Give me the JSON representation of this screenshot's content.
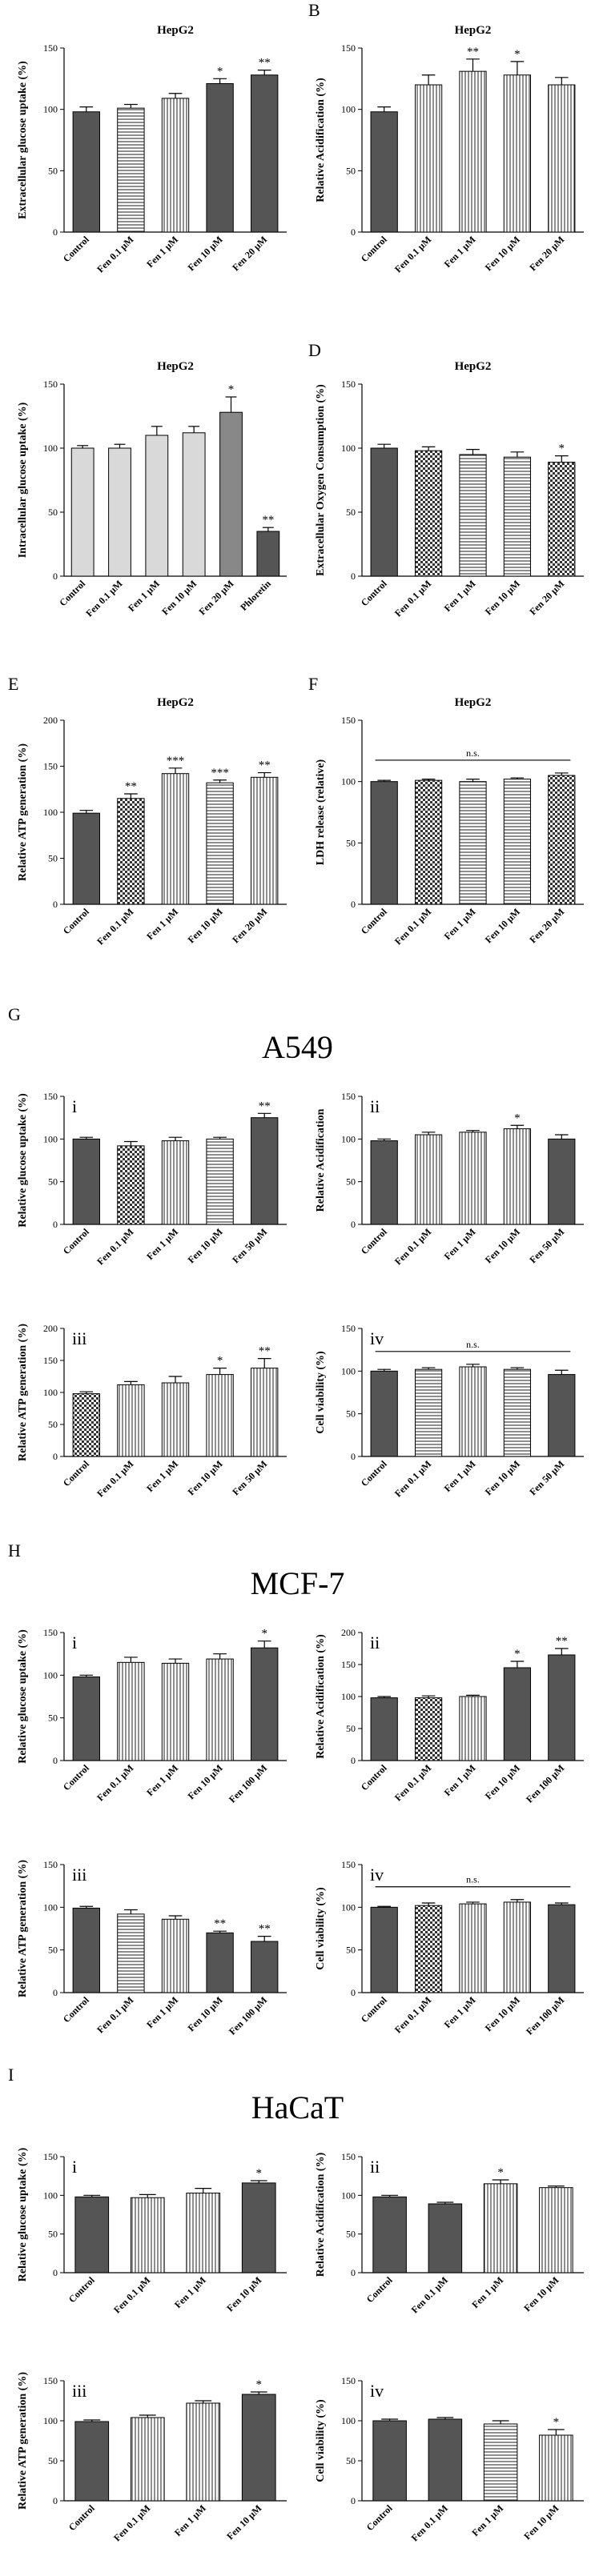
{
  "panel_letters": [
    "B",
    "D",
    "E",
    "F",
    "G",
    "H",
    "I"
  ],
  "sections": {
    "G": "A549",
    "H": "MCF-7",
    "I": "HaCaT"
  },
  "chart_data": [
    {
      "id": "A",
      "type": "bar",
      "title": "HepG2",
      "ylabel": "Extracellular glucose uptake (%)",
      "roman": "",
      "ylim": [
        0,
        150
      ],
      "yticks": [
        0,
        50,
        100,
        150
      ],
      "categories": [
        "Control",
        "Fen 0.1 μM",
        "Fen 1 μM",
        "Fen 10 μM",
        "Fen 20 μM"
      ],
      "values": [
        98,
        101,
        109,
        121,
        128
      ],
      "errors": [
        4,
        3,
        4,
        4,
        4
      ],
      "sig": [
        "",
        "",
        "",
        "*",
        "**"
      ],
      "patterns": [
        "dark",
        "hlines",
        "vlines",
        "dark",
        "dark"
      ]
    },
    {
      "id": "B",
      "type": "bar",
      "title": "HepG2",
      "ylabel": "Relative Acidification (%)",
      "roman": "",
      "ylim": [
        0,
        150
      ],
      "yticks": [
        0,
        50,
        100,
        150
      ],
      "categories": [
        "Control",
        "Fen 0.1 μM",
        "Fen 1 μM",
        "Fen 10 μM",
        "Fen 20 μM"
      ],
      "values": [
        98,
        120,
        131,
        128,
        120
      ],
      "errors": [
        4,
        8,
        10,
        11,
        6
      ],
      "sig": [
        "",
        "",
        "**",
        "*",
        ""
      ],
      "patterns": [
        "dark",
        "vlines",
        "vlines",
        "vlines",
        "vlines"
      ]
    },
    {
      "id": "C",
      "type": "bar",
      "title": "HepG2",
      "ylabel": "Intracellular glucose uptake (%)",
      "roman": "",
      "ylim": [
        0,
        150
      ],
      "yticks": [
        0,
        50,
        100,
        150
      ],
      "categories": [
        "Control",
        "Fen 0.1 μM",
        "Fen 1 μM",
        "Fen 10 μM",
        "Fen 20 μM",
        "Phloretin"
      ],
      "values": [
        100,
        100,
        110,
        112,
        128,
        35
      ],
      "errors": [
        2,
        3,
        7,
        5,
        12,
        3
      ],
      "sig": [
        "",
        "",
        "",
        "",
        "*",
        "**"
      ],
      "patterns": [
        "light",
        "light",
        "light",
        "light",
        "mid",
        "dark"
      ]
    },
    {
      "id": "D",
      "type": "bar",
      "title": "HepG2",
      "ylabel": "Extracellular Oxygen Consumption (%)",
      "roman": "",
      "ylim": [
        0,
        150
      ],
      "yticks": [
        0,
        50,
        100,
        150
      ],
      "categories": [
        "Control",
        "Fen 0.1 μM",
        "Fen 1 μM",
        "Fen 10 μM",
        "Fen 20 μM"
      ],
      "values": [
        100,
        98,
        95,
        93,
        89
      ],
      "errors": [
        3,
        3,
        4,
        4,
        5
      ],
      "sig": [
        "",
        "",
        "",
        "",
        "*"
      ],
      "patterns": [
        "dark",
        "checker",
        "hlines",
        "hlines",
        "checker"
      ]
    },
    {
      "id": "E",
      "type": "bar",
      "title": "HepG2",
      "ylabel": "Relative ATP generation (%)",
      "roman": "",
      "ylim": [
        0,
        200
      ],
      "yticks": [
        0,
        50,
        100,
        150,
        200
      ],
      "categories": [
        "Control",
        "Fen 0.1 μM",
        "Fen 1 μM",
        "Fen 10 μM",
        "Fen 20 μM"
      ],
      "values": [
        99,
        115,
        142,
        132,
        138
      ],
      "errors": [
        3,
        5,
        6,
        3,
        5
      ],
      "sig": [
        "",
        "**",
        "***",
        "***",
        "**"
      ],
      "patterns": [
        "dark",
        "checker",
        "vlines",
        "hlines",
        "vlines"
      ]
    },
    {
      "id": "F",
      "type": "bar",
      "title": "HepG2",
      "ylabel": "LDH release (relative)",
      "roman": "",
      "ylim": [
        0,
        150
      ],
      "yticks": [
        0,
        50,
        100,
        150
      ],
      "categories": [
        "Control",
        "Fen 0.1 μM",
        "Fen 1 μM",
        "Fen 10 μM",
        "Fen 20 μM"
      ],
      "values": [
        100,
        101,
        100,
        102,
        105
      ],
      "errors": [
        1,
        1,
        2,
        1,
        2
      ],
      "sig": [
        "",
        "",
        "",
        "",
        ""
      ],
      "ns": "n.s.",
      "patterns": [
        "dark",
        "checker",
        "hlines",
        "hlines",
        "checker"
      ]
    },
    {
      "id": "Gi",
      "type": "bar",
      "title": "",
      "ylabel": "Relative glucose uptake (%)",
      "roman": "i",
      "ylim": [
        0,
        150
      ],
      "yticks": [
        0,
        50,
        100,
        150
      ],
      "categories": [
        "Control",
        "Fen 0.1 μM",
        "Fen 1 μM",
        "Fen 10 μM",
        "Fen 50 μM"
      ],
      "values": [
        100,
        92,
        98,
        100,
        125
      ],
      "errors": [
        2,
        5,
        4,
        2,
        5
      ],
      "sig": [
        "",
        "",
        "",
        "",
        "**"
      ],
      "patterns": [
        "dark",
        "checker",
        "vlines",
        "hlines",
        "dark"
      ]
    },
    {
      "id": "Gii",
      "type": "bar",
      "title": "",
      "ylabel": "Relative Acidification",
      "roman": "ii",
      "ylim": [
        0,
        150
      ],
      "yticks": [
        0,
        50,
        100,
        150
      ],
      "categories": [
        "Control",
        "Fen 0.1 μM",
        "Fen 1 μM",
        "Fen 10 μM",
        "Fen 50 μM"
      ],
      "values": [
        98,
        105,
        108,
        112,
        100
      ],
      "errors": [
        2,
        3,
        2,
        4,
        5
      ],
      "sig": [
        "",
        "",
        "",
        "*",
        ""
      ],
      "patterns": [
        "dark",
        "vlines",
        "vlines",
        "vlines",
        "dark"
      ]
    },
    {
      "id": "Giii",
      "type": "bar",
      "title": "",
      "ylabel": "Relative ATP generation (%)",
      "roman": "iii",
      "ylim": [
        0,
        200
      ],
      "yticks": [
        0,
        50,
        100,
        150,
        200
      ],
      "categories": [
        "Control",
        "Fen 0.1 μM",
        "Fen 1 μM",
        "Fen 10 μM",
        "Fen 50 μM"
      ],
      "values": [
        98,
        112,
        115,
        128,
        138
      ],
      "errors": [
        3,
        5,
        10,
        10,
        15
      ],
      "sig": [
        "",
        "",
        "",
        "*",
        "**"
      ],
      "patterns": [
        "checker",
        "vlines",
        "vlines",
        "vlines",
        "vlines"
      ]
    },
    {
      "id": "Giv",
      "type": "bar",
      "title": "",
      "ylabel": "Cell viability (%)",
      "roman": "iv",
      "ylim": [
        0,
        150
      ],
      "yticks": [
        0,
        50,
        100,
        150
      ],
      "categories": [
        "Control",
        "Fen 0.1 μM",
        "Fen 1 μM",
        "Fen 10 μM",
        "Fen 50 μM"
      ],
      "values": [
        100,
        102,
        105,
        102,
        96
      ],
      "errors": [
        2,
        2,
        3,
        2,
        5
      ],
      "sig": [
        "",
        "",
        "",
        "",
        ""
      ],
      "ns": "n.s.",
      "patterns": [
        "dark",
        "hlines",
        "vlines",
        "hlines",
        "dark"
      ]
    },
    {
      "id": "Hi",
      "type": "bar",
      "title": "",
      "ylabel": "Relative glucose uptake (%)",
      "roman": "i",
      "ylim": [
        0,
        150
      ],
      "yticks": [
        0,
        50,
        100,
        150
      ],
      "categories": [
        "Control",
        "Fen 0.1 μM",
        "Fen 1 μM",
        "Fen 10 μM",
        "Fen 100 μM"
      ],
      "values": [
        98,
        115,
        114,
        119,
        132
      ],
      "errors": [
        2,
        6,
        5,
        6,
        8
      ],
      "sig": [
        "",
        "",
        "",
        "",
        "*"
      ],
      "patterns": [
        "dark",
        "vlines",
        "vlines",
        "vlines",
        "dark"
      ]
    },
    {
      "id": "Hii",
      "type": "bar",
      "title": "",
      "ylabel": "Relative Acidification (%)",
      "roman": "ii",
      "ylim": [
        0,
        200
      ],
      "yticks": [
        0,
        50,
        100,
        150,
        200
      ],
      "categories": [
        "Control",
        "Fen 0.1 μM",
        "Fen 1 μM",
        "Fen 10 μM",
        "Fen 100 μM"
      ],
      "values": [
        98,
        98,
        100,
        145,
        165
      ],
      "errors": [
        2,
        3,
        2,
        10,
        10
      ],
      "sig": [
        "",
        "",
        "",
        "*",
        "**"
      ],
      "patterns": [
        "dark",
        "checker",
        "vlines",
        "dark",
        "dark"
      ]
    },
    {
      "id": "Hiii",
      "type": "bar",
      "title": "",
      "ylabel": "Relative ATP generation (%)",
      "roman": "iii",
      "ylim": [
        0,
        150
      ],
      "yticks": [
        0,
        50,
        100,
        150
      ],
      "categories": [
        "Control",
        "Fen 0.1 μM",
        "Fen 1 μM",
        "Fen 10 μM",
        "Fen 100 μM"
      ],
      "values": [
        99,
        92,
        86,
        70,
        60
      ],
      "errors": [
        2,
        5,
        4,
        2,
        6
      ],
      "sig": [
        "",
        "",
        "",
        "**",
        "**"
      ],
      "patterns": [
        "dark",
        "hlines",
        "vlines",
        "dark",
        "dark"
      ]
    },
    {
      "id": "Hiv",
      "type": "bar",
      "title": "",
      "ylabel": "Cell viability (%)",
      "roman": "iv",
      "ylim": [
        0,
        150
      ],
      "yticks": [
        0,
        50,
        100,
        150
      ],
      "categories": [
        "Control",
        "Fen 0.1 μM",
        "Fen 1 μM",
        "Fen 10 μM",
        "Fen 100 μM"
      ],
      "values": [
        100,
        102,
        104,
        106,
        103
      ],
      "errors": [
        1,
        3,
        2,
        3,
        2
      ],
      "sig": [
        "",
        "",
        "",
        "",
        ""
      ],
      "ns": "n.s.",
      "patterns": [
        "dark",
        "checker",
        "vlines",
        "vlines",
        "dark"
      ]
    },
    {
      "id": "Ii",
      "type": "bar",
      "title": "",
      "ylabel": "Relative glucose uptake (%)",
      "roman": "i",
      "ylim": [
        0,
        150
      ],
      "yticks": [
        0,
        50,
        100,
        150
      ],
      "categories": [
        "Control",
        "Fen 0.1 μM",
        "Fen 1 μM",
        "Fen 10 μM"
      ],
      "values": [
        98,
        97,
        103,
        116
      ],
      "errors": [
        2,
        4,
        6,
        3
      ],
      "sig": [
        "",
        "",
        "",
        "*"
      ],
      "patterns": [
        "dark",
        "vlines",
        "vlines",
        "dark"
      ]
    },
    {
      "id": "Iii",
      "type": "bar",
      "title": "",
      "ylabel": "Relative Acidification (%)",
      "roman": "ii",
      "ylim": [
        0,
        150
      ],
      "yticks": [
        0,
        50,
        100,
        150
      ],
      "categories": [
        "Control",
        "Fen 0.1 μM",
        "Fen 1 μM",
        "Fen 10 μM"
      ],
      "values": [
        98,
        89,
        115,
        110
      ],
      "errors": [
        2,
        2,
        5,
        2
      ],
      "sig": [
        "",
        "",
        "*",
        ""
      ],
      "patterns": [
        "dark",
        "dark",
        "vlines",
        "vlines"
      ]
    },
    {
      "id": "Iiii",
      "type": "bar",
      "title": "",
      "ylabel": "Relative ATP generation (%)",
      "roman": "iii",
      "ylim": [
        0,
        150
      ],
      "yticks": [
        0,
        50,
        100,
        150
      ],
      "categories": [
        "Control",
        "Fen 0.1 μM",
        "Fen 1 μM",
        "Fen 10 μM"
      ],
      "values": [
        99,
        104,
        122,
        133
      ],
      "errors": [
        2,
        3,
        3,
        3
      ],
      "sig": [
        "",
        "",
        "",
        "*"
      ],
      "patterns": [
        "dark",
        "vlines",
        "vlines",
        "dark"
      ]
    },
    {
      "id": "Iiv",
      "type": "bar",
      "title": "",
      "ylabel": "Cell viability (%)",
      "roman": "iv",
      "ylim": [
        0,
        150
      ],
      "yticks": [
        0,
        50,
        100,
        150
      ],
      "categories": [
        "Control",
        "Fen 0.1 μM",
        "Fen 1 μM",
        "Fen 10 μM"
      ],
      "values": [
        100,
        102,
        96,
        82
      ],
      "errors": [
        2,
        2,
        4,
        7
      ],
      "sig": [
        "",
        "",
        "",
        "*"
      ],
      "patterns": [
        "dark",
        "dark",
        "hlines",
        "vlines"
      ]
    }
  ]
}
